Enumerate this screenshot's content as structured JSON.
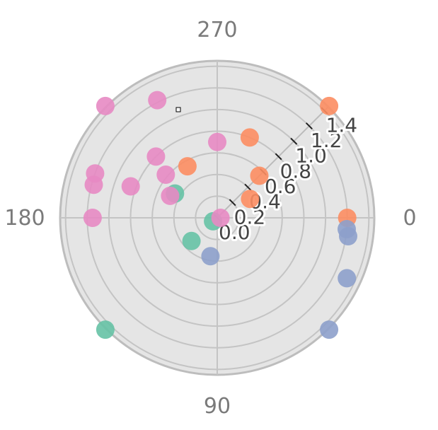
{
  "chart_data": {
    "type": "scatter",
    "coordinate_system": "polar",
    "title": "",
    "angular_axis": {
      "direction": "clockwise",
      "rotation_deg": 0,
      "tick_labels": [
        "0",
        "90",
        "180",
        "270"
      ],
      "tick_values": [
        0,
        90,
        180,
        270
      ]
    },
    "radial_axis": {
      "range": [
        0,
        1.45
      ],
      "tick_values": [
        0,
        0.2,
        0.4,
        0.6,
        0.8,
        1.0,
        1.2,
        1.4
      ],
      "tick_labels": [
        "0.0",
        "0.2",
        "0.4",
        "0.6",
        "0.8",
        "1.0",
        "1.2",
        "1.4"
      ],
      "label_angle_deg": 315
    },
    "grid": true,
    "legend": "none",
    "colors": {
      "background": "#e5e5e5",
      "grid": "#c4c4c4",
      "outline": "#bdbdbd",
      "series": [
        "#66c2a5",
        "#fc8d62",
        "#8da0cb",
        "#e78ac3"
      ]
    },
    "series": [
      {
        "color": "#66c2a5",
        "points": [
          {
            "r": 0.05,
            "theta": 140
          },
          {
            "r": 0.32,
            "theta": 138
          },
          {
            "r": 0.45,
            "theta": 210
          },
          {
            "r": 1.46,
            "theta": 135
          }
        ]
      },
      {
        "color": "#fc8d62",
        "points": [
          {
            "r": 0.35,
            "theta": 330
          },
          {
            "r": 0.55,
            "theta": 315
          },
          {
            "r": 0.8,
            "theta": 292
          },
          {
            "r": 0.55,
            "theta": 240
          },
          {
            "r": 1.2,
            "theta": 0
          },
          {
            "r": 1.46,
            "theta": 315
          }
        ]
      },
      {
        "color": "#8da0cb",
        "points": [
          {
            "r": 0.36,
            "theta": 100
          },
          {
            "r": 1.2,
            "theta": 5
          },
          {
            "r": 1.22,
            "theta": 8
          },
          {
            "r": 1.32,
            "theta": 25
          },
          {
            "r": 1.46,
            "theta": 45
          }
        ]
      },
      {
        "color": "#e78ac3",
        "points": [
          {
            "r": 0.03,
            "theta": 0
          },
          {
            "r": 0.7,
            "theta": 270
          },
          {
            "r": 0.48,
            "theta": 205
          },
          {
            "r": 0.62,
            "theta": 220
          },
          {
            "r": 0.85,
            "theta": 200
          },
          {
            "r": 0.8,
            "theta": 225
          },
          {
            "r": 1.15,
            "theta": 180
          },
          {
            "r": 1.18,
            "theta": 195
          },
          {
            "r": 1.2,
            "theta": 200
          },
          {
            "r": 1.22,
            "theta": 243
          },
          {
            "r": 1.46,
            "theta": 225
          }
        ]
      }
    ]
  }
}
